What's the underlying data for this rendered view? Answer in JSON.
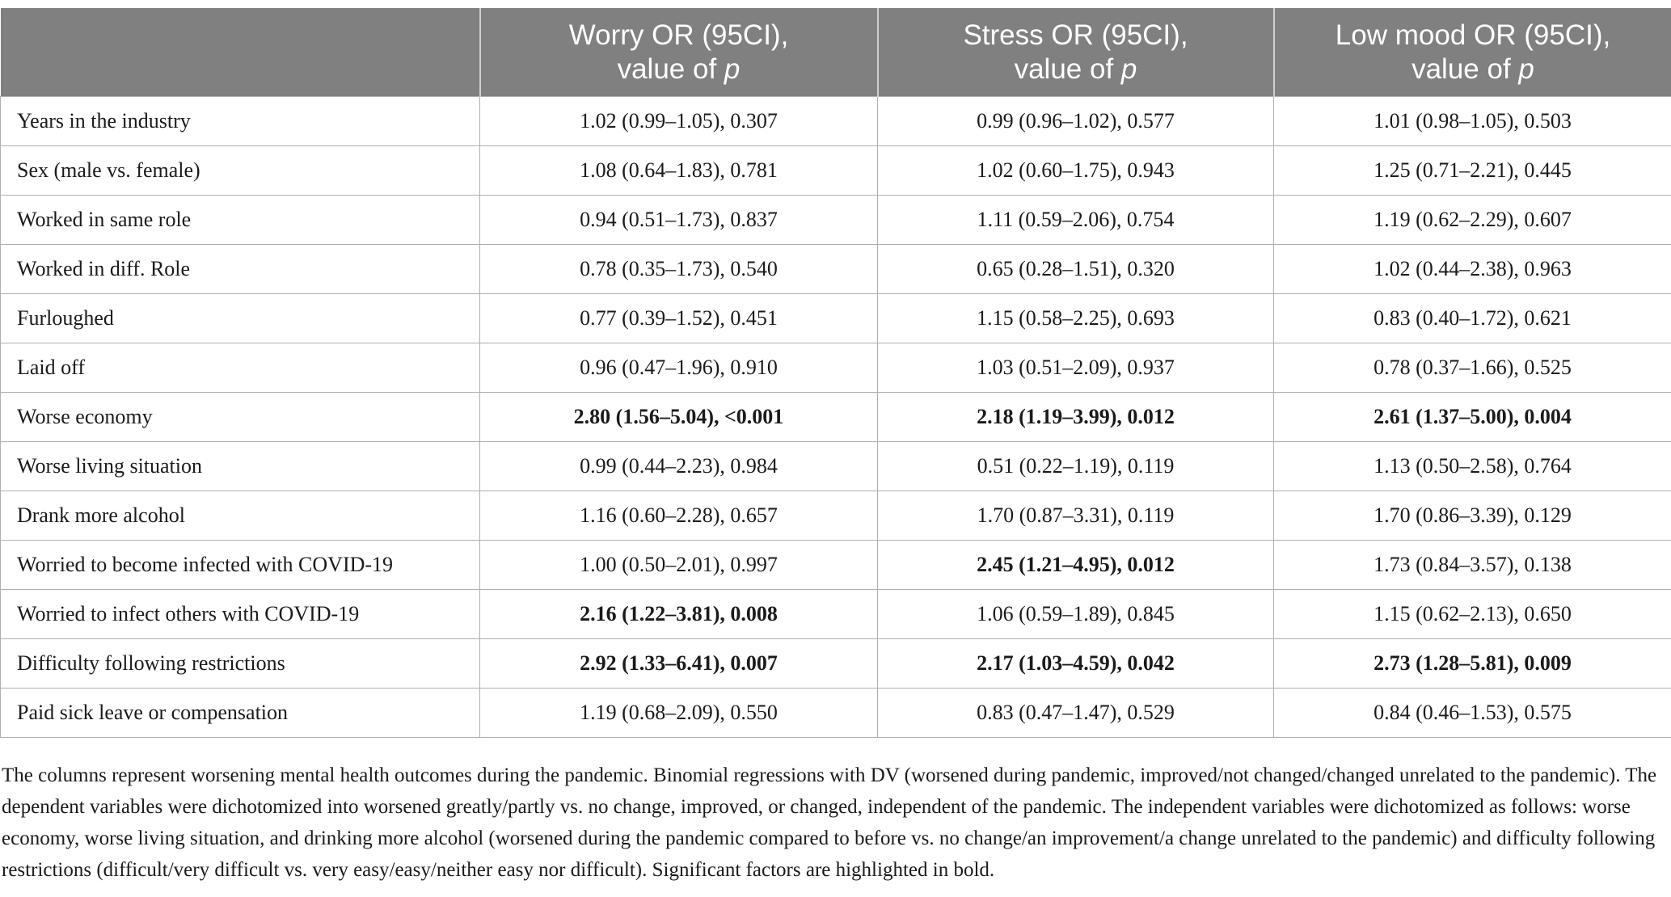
{
  "table": {
    "header": [
      {
        "line1": "Worry OR (95CI),",
        "line2": "value of",
        "italic": "p"
      },
      {
        "line1": "Stress OR (95CI),",
        "line2": "value of",
        "italic": "p"
      },
      {
        "line1": "Low mood OR (95CI),",
        "line2": "value of",
        "italic": "p"
      }
    ],
    "rows": [
      {
        "label": "Years in the industry",
        "cells": [
          "1.02 (0.99–1.05), 0.307",
          "0.99 (0.96–1.02), 0.577",
          "1.01 (0.98–1.05), 0.503"
        ],
        "bold": [
          false,
          false,
          false
        ]
      },
      {
        "label": "Sex (male vs. female)",
        "cells": [
          "1.08 (0.64–1.83), 0.781",
          "1.02 (0.60–1.75), 0.943",
          "1.25 (0.71–2.21), 0.445"
        ],
        "bold": [
          false,
          false,
          false
        ]
      },
      {
        "label": "Worked in same role",
        "cells": [
          "0.94 (0.51–1.73), 0.837",
          "1.11 (0.59–2.06), 0.754",
          "1.19 (0.62–2.29), 0.607"
        ],
        "bold": [
          false,
          false,
          false
        ]
      },
      {
        "label": "Worked in diff. Role",
        "cells": [
          "0.78 (0.35–1.73), 0.540",
          "0.65 (0.28–1.51), 0.320",
          "1.02 (0.44–2.38), 0.963"
        ],
        "bold": [
          false,
          false,
          false
        ]
      },
      {
        "label": "Furloughed",
        "cells": [
          "0.77 (0.39–1.52), 0.451",
          "1.15 (0.58–2.25), 0.693",
          "0.83 (0.40–1.72), 0.621"
        ],
        "bold": [
          false,
          false,
          false
        ]
      },
      {
        "label": "Laid off",
        "cells": [
          "0.96 (0.47–1.96), 0.910",
          "1.03 (0.51–2.09), 0.937",
          "0.78 (0.37–1.66), 0.525"
        ],
        "bold": [
          false,
          false,
          false
        ]
      },
      {
        "label": "Worse economy",
        "cells": [
          "2.80 (1.56–5.04), <0.001",
          "2.18 (1.19–3.99), 0.012",
          "2.61 (1.37–5.00), 0.004"
        ],
        "bold": [
          true,
          true,
          true
        ]
      },
      {
        "label": "Worse living situation",
        "cells": [
          "0.99 (0.44–2.23), 0.984",
          "0.51 (0.22–1.19), 0.119",
          "1.13 (0.50–2.58), 0.764"
        ],
        "bold": [
          false,
          false,
          false
        ]
      },
      {
        "label": "Drank more alcohol",
        "cells": [
          "1.16 (0.60–2.28), 0.657",
          "1.70 (0.87–3.31), 0.119",
          "1.70 (0.86–3.39), 0.129"
        ],
        "bold": [
          false,
          false,
          false
        ]
      },
      {
        "label": "Worried to become infected with COVID-19",
        "cells": [
          "1.00 (0.50–2.01), 0.997",
          "2.45 (1.21–4.95), 0.012",
          "1.73 (0.84–3.57), 0.138"
        ],
        "bold": [
          false,
          true,
          false
        ]
      },
      {
        "label": "Worried to infect others with COVID-19",
        "cells": [
          "2.16 (1.22–3.81), 0.008",
          "1.06 (0.59–1.89), 0.845",
          "1.15 (0.62–2.13), 0.650"
        ],
        "bold": [
          true,
          false,
          false
        ]
      },
      {
        "label": "Difficulty following restrictions",
        "cells": [
          "2.92 (1.33–6.41), 0.007",
          "2.17 (1.03–4.59), 0.042",
          "2.73 (1.28–5.81), 0.009"
        ],
        "bold": [
          true,
          true,
          true
        ]
      },
      {
        "label": "Paid sick leave or compensation",
        "cells": [
          "1.19 (0.68–2.09), 0.550",
          "0.83 (0.47–1.47), 0.529",
          "0.84 (0.46–1.53), 0.575"
        ],
        "bold": [
          false,
          false,
          false
        ]
      }
    ]
  },
  "footnote": "The columns represent worsening mental health outcomes during the pandemic. Binomial regressions with DV (worsened during pandemic, improved/not changed/changed unrelated to the pandemic). The dependent variables were dichotomized into worsened greatly/partly vs. no change, improved, or changed, independent of the pandemic. The independent variables were dichotomized as follows: worse economy, worse living situation, and drinking more alcohol (worsened during the pandemic compared to before vs. no change/an improvement/a change unrelated to the pandemic) and difficulty following restrictions (difficult/very difficult vs. very easy/easy/neither easy nor difficult). Significant factors are highlighted in bold."
}
